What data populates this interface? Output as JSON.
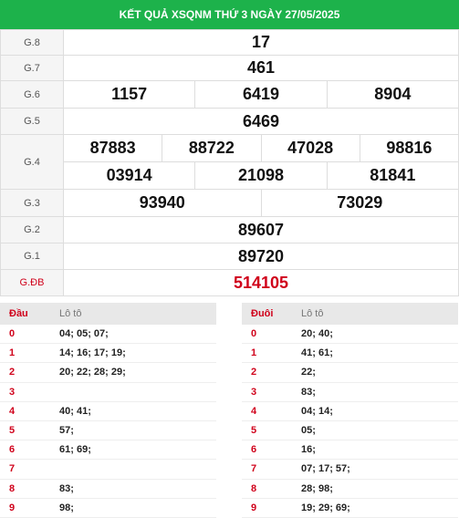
{
  "header": {
    "title": "KẾT QUẢ XSQNM THỨ 3 NGÀY 27/05/2025"
  },
  "prizes": [
    {
      "label": "G.8",
      "rows": [
        [
          "17"
        ]
      ]
    },
    {
      "label": "G.7",
      "rows": [
        [
          "461"
        ]
      ]
    },
    {
      "label": "G.6",
      "rows": [
        [
          "1157",
          "6419",
          "8904"
        ]
      ]
    },
    {
      "label": "G.5",
      "rows": [
        [
          "6469"
        ]
      ]
    },
    {
      "label": "G.4",
      "rows": [
        [
          "87883",
          "88722",
          "47028",
          "98816"
        ],
        [
          "03914",
          "21098",
          "81841"
        ]
      ]
    },
    {
      "label": "G.3",
      "rows": [
        [
          "93940",
          "73029"
        ]
      ]
    },
    {
      "label": "G.2",
      "rows": [
        [
          "89607"
        ]
      ]
    },
    {
      "label": "G.1",
      "rows": [
        [
          "89720"
        ]
      ]
    },
    {
      "label": "G.ĐB",
      "rows": [
        [
          "514105"
        ]
      ]
    }
  ],
  "dau_table": {
    "col1": "Đầu",
    "col2": "Lô tô",
    "rows": [
      [
        "0",
        "04; 05; 07;"
      ],
      [
        "1",
        "14; 16; 17; 19;"
      ],
      [
        "2",
        "20; 22; 28; 29;"
      ],
      [
        "3",
        ""
      ],
      [
        "4",
        "40; 41;"
      ],
      [
        "5",
        "57;"
      ],
      [
        "6",
        "61; 69;"
      ],
      [
        "7",
        ""
      ],
      [
        "8",
        "83;"
      ],
      [
        "9",
        "98;"
      ]
    ]
  },
  "duoi_table": {
    "col1": "Đuôi",
    "col2": "Lô tô",
    "rows": [
      [
        "0",
        "20; 40;"
      ],
      [
        "1",
        "41; 61;"
      ],
      [
        "2",
        "22;"
      ],
      [
        "3",
        "83;"
      ],
      [
        "4",
        "04; 14;"
      ],
      [
        "5",
        "05;"
      ],
      [
        "6",
        "16;"
      ],
      [
        "7",
        "07; 17; 57;"
      ],
      [
        "8",
        "28; 98;"
      ],
      [
        "9",
        "19; 29; 69;"
      ]
    ]
  }
}
